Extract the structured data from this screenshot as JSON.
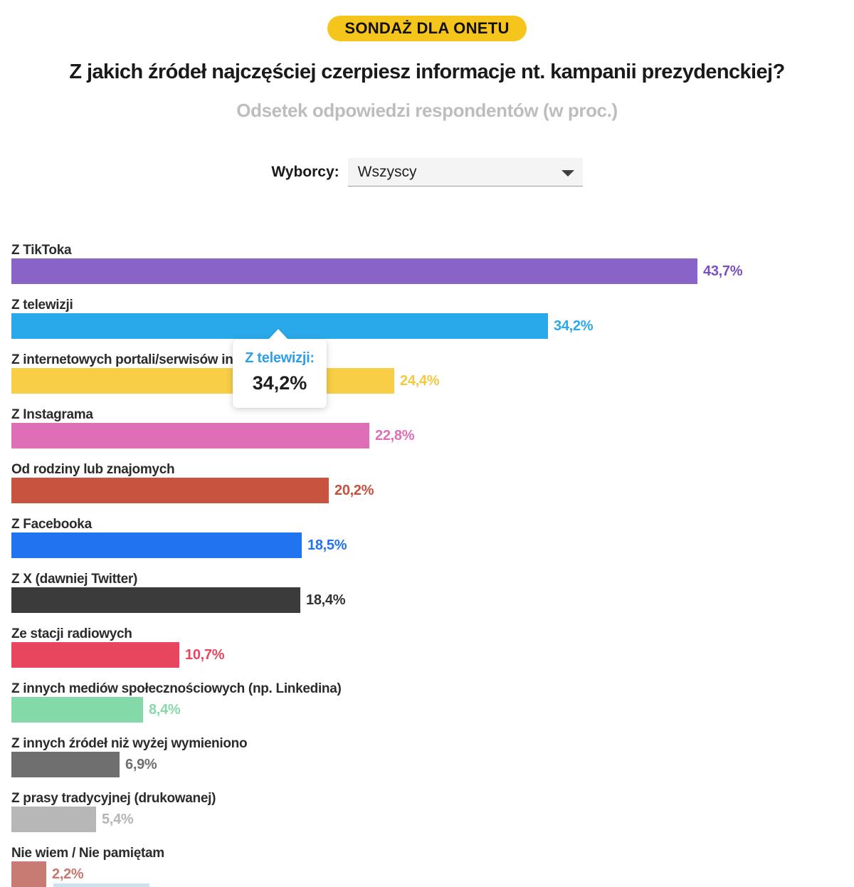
{
  "badge": {
    "label": "SONDAŻ DLA ONETU",
    "bg_color": "#F5C51B",
    "text_color": "#111111"
  },
  "header": {
    "title": "Z jakich źródeł najczęściej czerpiesz informacje nt. kampanii prezydenckiej?",
    "subtitle": "Odsetek odpowiedzi respondentów (w proc.)"
  },
  "filter": {
    "label": "Wyborcy:",
    "selected_option": "Wszyscy"
  },
  "tooltip": {
    "category": "Z telewizji:",
    "value": "34,2%"
  },
  "chart_data": {
    "type": "bar",
    "orientation": "horizontal",
    "unit": "percent",
    "xlim": [
      0,
      45
    ],
    "grid": false,
    "legend": false,
    "title": "Z jakich źródeł najczęściej czerpiesz informacje nt. kampanii prezydenckiej?",
    "subtitle": "Odsetek odpowiedzi respondentów (w proc.)",
    "categories": [
      "Z TikToka",
      "Z telewizji",
      "Z internetowych portali/serwisów informacyjnych",
      "Z Instagrama",
      "Od rodziny lub znajomych",
      "Z Facebooka",
      "Z X (dawniej Twitter)",
      "Ze stacji radiowych",
      "Z innych mediów społecznościowych (np. Linkedina)",
      "Z innych źródeł niż wyżej wymieniono",
      "Z prasy tradycyjnej (drukowanej)",
      "Nie wiem / Nie pamiętam"
    ],
    "values": [
      43.7,
      34.2,
      24.4,
      22.8,
      20.2,
      18.5,
      18.4,
      10.7,
      8.4,
      6.9,
      5.4,
      2.2
    ],
    "value_labels": [
      "43,7%",
      "34,2%",
      "24,4%",
      "22,8%",
      "20,2%",
      "18,5%",
      "18,4%",
      "10,7%",
      "8,4%",
      "6,9%",
      "5,4%",
      "2,2%"
    ],
    "colors": [
      "#8A63C9",
      "#29A9E9",
      "#F8CE46",
      "#DE6EB6",
      "#C8543F",
      "#2273F0",
      "#3B3B3B",
      "#E8455F",
      "#84D9A9",
      "#6F6F6F",
      "#B7B7B7",
      "#C87B72"
    ],
    "value_text_colors": [
      "#7A4FC0",
      "#29A9E9",
      "#F5C93F",
      "#DE6EB6",
      "#C6503C",
      "#2272F0",
      "#333333",
      "#E8455F",
      "#85DAAA",
      "#6F6F6F",
      "#B5B5B5",
      "#C8776E"
    ]
  }
}
